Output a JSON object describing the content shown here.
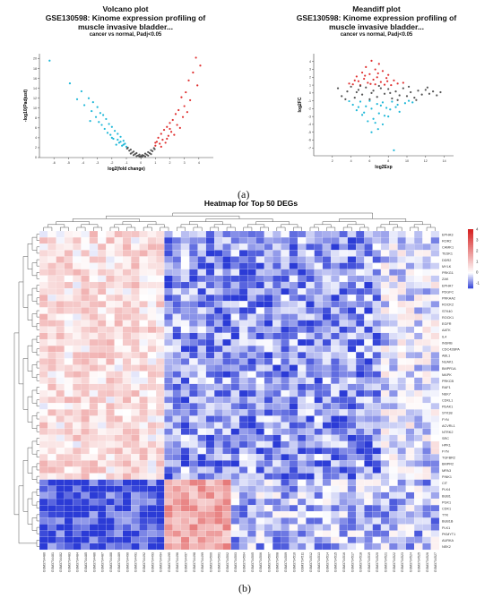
{
  "chart_data": [
    {
      "type": "scatter",
      "panel": "volcano",
      "title": "Volcano plot",
      "subtitle_lines": [
        "GSE130598: Kinome expression profiling of",
        "muscle invasive bladder..."
      ],
      "condition": "cancer vs normal, Padj<0.05",
      "xlabel": "log2(fold change)",
      "ylabel": "-log10(Padjust)",
      "xlim": [
        -7,
        5
      ],
      "ylim": [
        0,
        21
      ],
      "xticks": [
        -6,
        -5,
        -4,
        -3,
        -2,
        -1,
        0,
        1,
        2,
        3,
        4
      ],
      "yticks": [
        0,
        2,
        4,
        6,
        8,
        10,
        12,
        14,
        16,
        18,
        20
      ],
      "series": [
        {
          "color": "#e03030",
          "points": [
            [
              3.8,
              20.2
            ],
            [
              4.1,
              18.6
            ],
            [
              3.6,
              17.2
            ],
            [
              3.3,
              15.6
            ],
            [
              3.9,
              14.6
            ],
            [
              3.1,
              13.2
            ],
            [
              2.8,
              12.2
            ],
            [
              3.4,
              11.6
            ],
            [
              3.0,
              10.4
            ],
            [
              2.6,
              9.6
            ],
            [
              2.4,
              8.8
            ],
            [
              2.9,
              8.2
            ],
            [
              2.2,
              7.6
            ],
            [
              2.0,
              7.0
            ],
            [
              2.5,
              6.6
            ],
            [
              1.8,
              6.2
            ],
            [
              1.6,
              5.6
            ],
            [
              2.1,
              5.2
            ],
            [
              1.4,
              4.8
            ],
            [
              1.9,
              4.4
            ],
            [
              1.2,
              4.0
            ],
            [
              1.5,
              3.6
            ],
            [
              1.1,
              3.2
            ],
            [
              1.3,
              2.8
            ],
            [
              1.7,
              3.0
            ],
            [
              1.0,
              2.4
            ],
            [
              2.3,
              4.6
            ],
            [
              2.7,
              6.0
            ],
            [
              3.2,
              9.2
            ],
            [
              1.0,
              3.0
            ],
            [
              1.4,
              2.2
            ],
            [
              1.8,
              3.8
            ],
            [
              2.0,
              5.8
            ]
          ]
        },
        {
          "color": "#1fb8d8",
          "points": [
            [
              -6.3,
              19.6
            ],
            [
              -4.9,
              15.0
            ],
            [
              -4.1,
              13.4
            ],
            [
              -3.6,
              12.0
            ],
            [
              -3.3,
              11.2
            ],
            [
              -3.9,
              10.6
            ],
            [
              -3.0,
              10.2
            ],
            [
              -3.4,
              9.4
            ],
            [
              -2.8,
              9.0
            ],
            [
              -3.1,
              8.2
            ],
            [
              -2.6,
              8.6
            ],
            [
              -2.4,
              7.8
            ],
            [
              -2.9,
              7.2
            ],
            [
              -2.2,
              6.8
            ],
            [
              -2.0,
              6.2
            ],
            [
              -2.5,
              5.8
            ],
            [
              -1.8,
              5.4
            ],
            [
              -1.6,
              4.8
            ],
            [
              -2.1,
              4.6
            ],
            [
              -1.4,
              4.2
            ],
            [
              -1.9,
              3.8
            ],
            [
              -1.2,
              3.4
            ],
            [
              -1.5,
              3.0
            ],
            [
              -1.1,
              2.8
            ],
            [
              -1.3,
              2.4
            ],
            [
              -1.7,
              2.6
            ],
            [
              -2.3,
              5.0
            ],
            [
              -2.7,
              6.6
            ],
            [
              -3.5,
              7.4
            ],
            [
              -1.0,
              2.2
            ],
            [
              -1.6,
              3.6
            ],
            [
              -2.0,
              4.0
            ],
            [
              -1.2,
              2.6
            ],
            [
              -4.4,
              11.8
            ],
            [
              -1.4,
              3.2
            ]
          ]
        },
        {
          "color": "#555555",
          "points": [
            [
              -0.9,
              2.0
            ],
            [
              -0.7,
              1.6
            ],
            [
              -0.5,
              1.2
            ],
            [
              -0.3,
              0.9
            ],
            [
              -0.1,
              0.6
            ],
            [
              0.1,
              0.5
            ],
            [
              0.3,
              0.8
            ],
            [
              0.5,
              1.1
            ],
            [
              0.7,
              1.5
            ],
            [
              0.9,
              1.9
            ],
            [
              -0.8,
              1.4
            ],
            [
              -0.6,
              1.0
            ],
            [
              -0.4,
              0.7
            ],
            [
              -0.2,
              0.4
            ],
            [
              0.0,
              0.3
            ],
            [
              0.2,
              0.4
            ],
            [
              0.4,
              0.6
            ],
            [
              0.6,
              0.9
            ],
            [
              0.8,
              1.3
            ],
            [
              -0.95,
              1.8
            ],
            [
              0.95,
              1.7
            ],
            [
              -0.5,
              0.5
            ],
            [
              0.5,
              0.4
            ],
            [
              -0.3,
              0.3
            ],
            [
              0.3,
              0.2
            ],
            [
              0.0,
              0.1
            ],
            [
              -0.7,
              0.8
            ],
            [
              0.7,
              0.7
            ],
            [
              -0.1,
              0.2
            ],
            [
              0.1,
              0.2
            ]
          ]
        }
      ]
    },
    {
      "type": "scatter",
      "panel": "meandiff",
      "title": "Meandiff plot",
      "subtitle_lines": [
        "GSE130598: Kinome expression profiling of",
        "muscle invasive bladder..."
      ],
      "condition": "cancer vs normal, Padj<0.05",
      "xlabel": "log2Exp",
      "ylabel": "log2FC",
      "xlim": [
        0,
        15
      ],
      "ylim": [
        -8,
        5
      ],
      "xticks": [
        2,
        4,
        6,
        8,
        10,
        12,
        14
      ],
      "yticks": [
        -7,
        -6,
        -5,
        -4,
        -3,
        -2,
        -1,
        0,
        1,
        2,
        3,
        4
      ],
      "series": [
        {
          "color": "#e03030",
          "points": [
            [
              6.2,
              4.1
            ],
            [
              7.0,
              3.7
            ],
            [
              5.6,
              3.3
            ],
            [
              6.6,
              3.0
            ],
            [
              7.4,
              2.8
            ],
            [
              5.2,
              2.6
            ],
            [
              6.0,
              2.4
            ],
            [
              8.0,
              2.3
            ],
            [
              4.6,
              2.1
            ],
            [
              6.8,
              2.0
            ],
            [
              7.8,
              1.9
            ],
            [
              5.4,
              1.8
            ],
            [
              6.4,
              1.7
            ],
            [
              8.6,
              1.6
            ],
            [
              4.8,
              1.5
            ],
            [
              7.2,
              1.4
            ],
            [
              5.8,
              1.3
            ],
            [
              9.0,
              1.2
            ],
            [
              6.6,
              1.1
            ],
            [
              4.2,
              1.1
            ],
            [
              7.6,
              1.05
            ],
            [
              5.0,
              1.0
            ],
            [
              8.3,
              1.0
            ],
            [
              6.1,
              1.15
            ],
            [
              3.8,
              1.2
            ],
            [
              9.6,
              1.3
            ],
            [
              7.9,
              1.5
            ],
            [
              5.5,
              2.2
            ],
            [
              6.9,
              2.5
            ],
            [
              4.4,
              1.6
            ]
          ]
        },
        {
          "color": "#1fb8d8",
          "points": [
            [
              8.6,
              -7.3
            ],
            [
              6.9,
              -4.6
            ],
            [
              7.4,
              -4.0
            ],
            [
              5.8,
              -3.6
            ],
            [
              6.4,
              -3.3
            ],
            [
              8.0,
              -3.0
            ],
            [
              5.2,
              -2.8
            ],
            [
              7.0,
              -2.6
            ],
            [
              9.2,
              -2.4
            ],
            [
              4.6,
              -2.2
            ],
            [
              6.2,
              -2.0
            ],
            [
              7.8,
              -1.9
            ],
            [
              8.8,
              -1.8
            ],
            [
              5.6,
              -1.7
            ],
            [
              4.2,
              -1.5
            ],
            [
              6.8,
              -1.4
            ],
            [
              9.8,
              -1.3
            ],
            [
              7.4,
              -1.2
            ],
            [
              5.0,
              -1.1
            ],
            [
              8.4,
              -1.1
            ],
            [
              3.8,
              -1.05
            ],
            [
              6.0,
              -1.0
            ],
            [
              10.2,
              -1.0
            ],
            [
              7.2,
              -1.6
            ],
            [
              5.4,
              -2.5
            ],
            [
              8.2,
              -2.1
            ],
            [
              6.6,
              -3.8
            ],
            [
              9.0,
              -1.5
            ],
            [
              4.8,
              -1.8
            ],
            [
              7.6,
              -2.9
            ],
            [
              6.2,
              -5.0
            ],
            [
              10.6,
              -1.2
            ]
          ]
        },
        {
          "color": "#555555",
          "points": [
            [
              2.6,
              0.6
            ],
            [
              3.0,
              -0.4
            ],
            [
              3.6,
              0.2
            ],
            [
              4.0,
              0.8
            ],
            [
              4.4,
              -0.6
            ],
            [
              4.8,
              0.4
            ],
            [
              5.2,
              -0.2
            ],
            [
              5.6,
              0.7
            ],
            [
              6.0,
              -0.8
            ],
            [
              6.4,
              0.3
            ],
            [
              6.8,
              -0.5
            ],
            [
              7.2,
              0.6
            ],
            [
              7.6,
              -0.1
            ],
            [
              8.0,
              0.5
            ],
            [
              8.4,
              -0.7
            ],
            [
              8.8,
              0.2
            ],
            [
              9.2,
              -0.3
            ],
            [
              9.6,
              0.6
            ],
            [
              10.0,
              -0.4
            ],
            [
              10.4,
              0.1
            ],
            [
              10.8,
              -0.6
            ],
            [
              11.2,
              0.3
            ],
            [
              11.6,
              -0.2
            ],
            [
              12.0,
              0.4
            ],
            [
              12.4,
              -0.1
            ],
            [
              12.8,
              0.2
            ],
            [
              13.2,
              -0.3
            ],
            [
              13.6,
              0.1
            ],
            [
              5.0,
              0.9
            ],
            [
              7.0,
              0.9
            ],
            [
              9.0,
              -0.9
            ],
            [
              6.2,
              0.0
            ],
            [
              8.2,
              0.0
            ],
            [
              4.6,
              0.1
            ],
            [
              10.2,
              0.8
            ],
            [
              11.0,
              -0.9
            ],
            [
              3.4,
              -0.8
            ],
            [
              12.2,
              0.7
            ]
          ]
        }
      ]
    },
    {
      "type": "heatmap",
      "panel": "heatmap",
      "title": "Heatmap for Top 50 DEGs",
      "rows": [
        "EPHA3",
        "ROR2",
        "CAMK1",
        "TESK1",
        "DDR2",
        "MYLK",
        "PRKG1",
        "ZAK",
        "EPHA7",
        "PDGFC",
        "PRKAA2",
        "ROCK2",
        "STK40",
        "ROCK1",
        "EGFR",
        "AATK",
        "IL4",
        "INSRB",
        "CDC42BPA",
        "ABL1",
        "NUAK1",
        "BMPR1A",
        "MAPK",
        "PRKCB",
        "RAF1",
        "NEK7",
        "CDKL1",
        "PEAK1",
        "STK38",
        "FYN",
        "ACVRL1",
        "NTRK2",
        "SRC",
        "HPK1",
        "FYN",
        "TGFBR2",
        "BMPR2",
        "MPA3",
        "PINK1",
        "CIT",
        "PLK4",
        "BUB1",
        "PGK1",
        "CDK1",
        "TTK",
        "BUB1B",
        "PLK1",
        "PKMYT1",
        "AURKA",
        "NEK2"
      ],
      "columns": [
        "GSM3734480",
        "GSM3734481",
        "GSM3734482",
        "GSM3734483",
        "GSM3734484",
        "GSM3734485",
        "GSM3734486",
        "GSM3734487",
        "GSM3734488",
        "GSM3734489",
        "GSM3734490",
        "GSM3734491",
        "GSM3734492",
        "GSM3734493",
        "GSM3734494",
        "GSM3734495",
        "GSM3734496",
        "GSM3734497",
        "GSM3734498",
        "GSM3734499",
        "GSM3734500",
        "GSM3734501",
        "GSM3734502",
        "GSM3734503",
        "GSM3734504",
        "GSM3734505",
        "GSM3734506",
        "GSM3734507",
        "GSM3734508",
        "GSM3734509",
        "GSM3734510",
        "GSM3734511",
        "GSM3734512",
        "GSM3734513",
        "GSM3734514",
        "GSM3734515",
        "GSM3734516",
        "GSM3734517",
        "GSM3734518",
        "GSM3734519",
        "GSM3734520",
        "GSM3734521",
        "GSM3734522",
        "GSM3734523",
        "GSM3734524",
        "GSM3734525",
        "GSM3734526",
        "GSM3734527"
      ],
      "legend_ticks": [
        4,
        3,
        2,
        1,
        0,
        -1
      ],
      "color_scale": {
        "low": "#2b3bd6",
        "mid": "#ffffff",
        "high": "#d62020"
      },
      "block_levels": {
        "upper_rows_normal_cols": 0.6,
        "upper_rows_tumor_cols": -0.8,
        "upper_rows_right_cols": -0.2,
        "lower_rows_normal_cols": -1.4,
        "lower_rows_prolif_cols": 1.6,
        "lower_rows_tumor_cols": -0.5
      }
    }
  ],
  "captions": {
    "a": "(a)",
    "b": "(b)"
  }
}
